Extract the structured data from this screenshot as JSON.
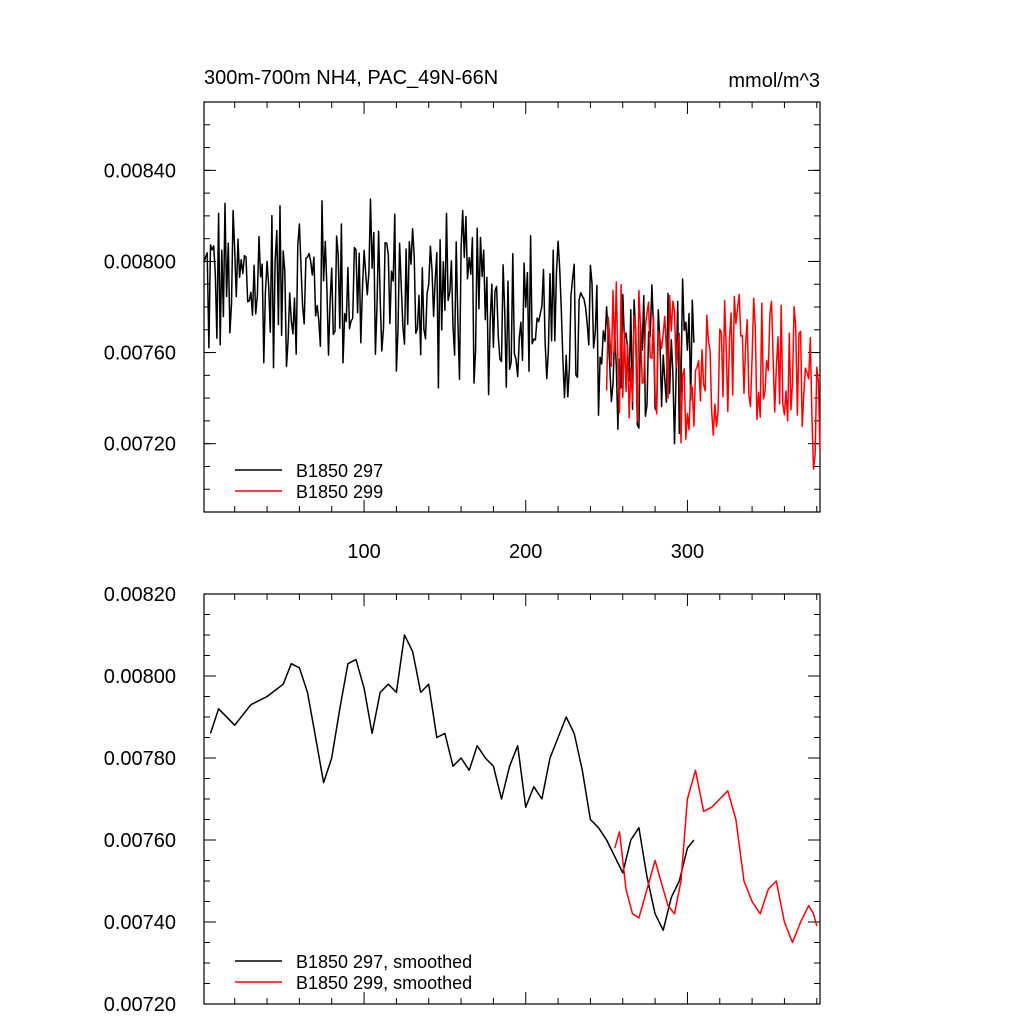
{
  "chart_data": [
    {
      "type": "line",
      "title": "300m-700m NH4, PAC_49N-66N",
      "units": "mmol/m^3",
      "xlim": [
        1,
        382
      ],
      "ylim": [
        0.0069,
        0.0087
      ],
      "xticks": [
        100,
        200,
        300
      ],
      "yticks": [
        0.0072,
        0.0076,
        0.008,
        0.0084
      ],
      "ytick_labels": [
        "0.00720",
        "0.00760",
        "0.00800",
        "0.00840"
      ],
      "legend": [
        "B1850 297",
        "B1850 299"
      ],
      "legend_position": "bottom-left",
      "series": [
        {
          "name": "B1850 297",
          "color": "#000000",
          "x_start": 1,
          "x_end": 304,
          "mean_trend": [
            [
              1,
              0.0079
            ],
            [
              100,
              0.0079
            ],
            [
              150,
              0.00785
            ],
            [
              200,
              0.00778
            ],
            [
              250,
              0.00763
            ],
            [
              300,
              0.00748
            ]
          ],
          "noise": 0.00045
        },
        {
          "name": "B1850 299",
          "color": "#ff0000",
          "x_start": 250,
          "x_end": 382,
          "mean_trend": [
            [
              250,
              0.0076
            ],
            [
              300,
              0.0075
            ],
            [
              330,
              0.00768
            ],
            [
              382,
              0.0074
            ]
          ],
          "noise": 0.0004
        }
      ]
    },
    {
      "type": "line",
      "title": "",
      "xlim": [
        1,
        382
      ],
      "ylim": [
        0.0072,
        0.0082
      ],
      "xticks": [
        100,
        200,
        300
      ],
      "yticks": [
        0.0072,
        0.0074,
        0.0076,
        0.0078,
        0.008,
        0.0082
      ],
      "ytick_labels": [
        "0.00720",
        "0.00740",
        "0.00760",
        "0.00780",
        "0.00800",
        "0.00820"
      ],
      "legend": [
        "B1850 297, smoothed",
        "B1850 299, smoothed"
      ],
      "legend_position": "bottom-left",
      "series": [
        {
          "name": "B1850 297, smoothed",
          "color": "#000000",
          "x": [
            5,
            10,
            20,
            30,
            40,
            50,
            55,
            60,
            65,
            70,
            75,
            80,
            85,
            90,
            95,
            100,
            105,
            110,
            115,
            120,
            125,
            130,
            135,
            140,
            145,
            150,
            155,
            160,
            165,
            170,
            175,
            180,
            185,
            190,
            195,
            200,
            205,
            210,
            215,
            220,
            225,
            230,
            235,
            240,
            245,
            250,
            255,
            260,
            265,
            270,
            275,
            280,
            285,
            290,
            295,
            300,
            304
          ],
          "y": [
            0.00786,
            0.00792,
            0.00788,
            0.00793,
            0.00795,
            0.00798,
            0.00803,
            0.00802,
            0.00796,
            0.00785,
            0.00774,
            0.0078,
            0.00792,
            0.00803,
            0.00804,
            0.00797,
            0.00786,
            0.00796,
            0.00798,
            0.00796,
            0.0081,
            0.00806,
            0.00796,
            0.00798,
            0.00785,
            0.00786,
            0.00778,
            0.0078,
            0.00777,
            0.00783,
            0.0078,
            0.00778,
            0.0077,
            0.00778,
            0.00783,
            0.00768,
            0.00773,
            0.0077,
            0.0078,
            0.00785,
            0.0079,
            0.00786,
            0.00777,
            0.00765,
            0.00763,
            0.0076,
            0.00756,
            0.00752,
            0.0076,
            0.00763,
            0.00751,
            0.00742,
            0.00738,
            0.00746,
            0.0075,
            0.00758,
            0.0076
          ]
        },
        {
          "name": "B1850 299, smoothed",
          "color": "#ff0000",
          "x": [
            255,
            258,
            262,
            266,
            270,
            275,
            280,
            285,
            288,
            292,
            296,
            300,
            305,
            310,
            315,
            320,
            325,
            330,
            335,
            340,
            345,
            350,
            355,
            360,
            365,
            370,
            375,
            378,
            380
          ],
          "y": [
            0.00758,
            0.00762,
            0.00748,
            0.00742,
            0.00741,
            0.00748,
            0.00755,
            0.00748,
            0.00744,
            0.00742,
            0.0075,
            0.0077,
            0.00777,
            0.00767,
            0.00768,
            0.0077,
            0.00772,
            0.00765,
            0.0075,
            0.00745,
            0.00742,
            0.00748,
            0.0075,
            0.0074,
            0.00735,
            0.0074,
            0.00744,
            0.00742,
            0.00739
          ]
        }
      ]
    }
  ]
}
